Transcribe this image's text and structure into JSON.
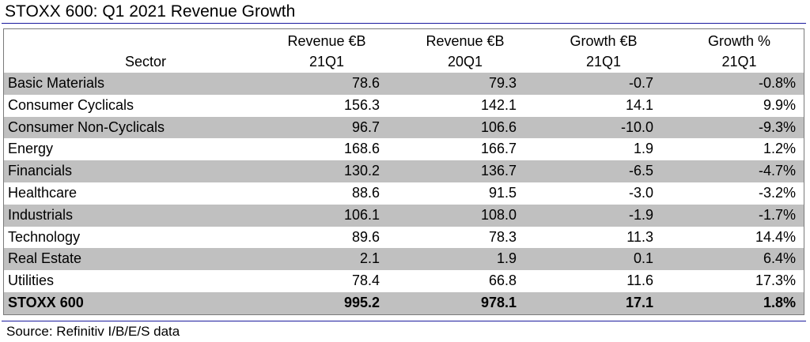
{
  "title": "STOXX 600: Q1 2021 Revenue Growth",
  "source": "Source: Refinitiv I/B/E/S data",
  "colors": {
    "rule": "#1a1a9e",
    "row_shade": "#c0c0c0",
    "frame": "#7a7a7a"
  },
  "chart_data": {
    "type": "table",
    "title": "STOXX 600: Q1 2021 Revenue Growth",
    "columns": [
      {
        "key": "sector",
        "line1": "",
        "line2": "Sector"
      },
      {
        "key": "rev_21q1",
        "line1": "Revenue €B",
        "line2": "21Q1"
      },
      {
        "key": "rev_20q1",
        "line1": "Revenue €B",
        "line2": "20Q1"
      },
      {
        "key": "growth_eur",
        "line1": "Growth €B",
        "line2": "21Q1"
      },
      {
        "key": "growth_pct",
        "line1": "Growth %",
        "line2": "21Q1"
      }
    ],
    "rows": [
      {
        "sector": "Basic Materials",
        "rev_21q1": "78.6",
        "rev_20q1": "79.3",
        "growth_eur": "-0.7",
        "growth_pct": "-0.8%"
      },
      {
        "sector": "Consumer Cyclicals",
        "rev_21q1": "156.3",
        "rev_20q1": "142.1",
        "growth_eur": "14.1",
        "growth_pct": "9.9%"
      },
      {
        "sector": "Consumer Non-Cyclicals",
        "rev_21q1": "96.7",
        "rev_20q1": "106.6",
        "growth_eur": "-10.0",
        "growth_pct": "-9.3%"
      },
      {
        "sector": "Energy",
        "rev_21q1": "168.6",
        "rev_20q1": "166.7",
        "growth_eur": "1.9",
        "growth_pct": "1.2%"
      },
      {
        "sector": "Financials",
        "rev_21q1": "130.2",
        "rev_20q1": "136.7",
        "growth_eur": "-6.5",
        "growth_pct": "-4.7%"
      },
      {
        "sector": "Healthcare",
        "rev_21q1": "88.6",
        "rev_20q1": "91.5",
        "growth_eur": "-3.0",
        "growth_pct": "-3.2%"
      },
      {
        "sector": "Industrials",
        "rev_21q1": "106.1",
        "rev_20q1": "108.0",
        "growth_eur": "-1.9",
        "growth_pct": "-1.7%"
      },
      {
        "sector": "Technology",
        "rev_21q1": "89.6",
        "rev_20q1": "78.3",
        "growth_eur": "11.3",
        "growth_pct": "14.4%"
      },
      {
        "sector": "Real Estate",
        "rev_21q1": "2.1",
        "rev_20q1": "1.9",
        "growth_eur": "0.1",
        "growth_pct": "6.4%"
      },
      {
        "sector": "Utilities",
        "rev_21q1": "78.4",
        "rev_20q1": "66.8",
        "growth_eur": "11.6",
        "growth_pct": "17.3%"
      }
    ],
    "total": {
      "sector": "STOXX 600",
      "rev_21q1": "995.2",
      "rev_20q1": "978.1",
      "growth_eur": "17.1",
      "growth_pct": "1.8%"
    }
  }
}
